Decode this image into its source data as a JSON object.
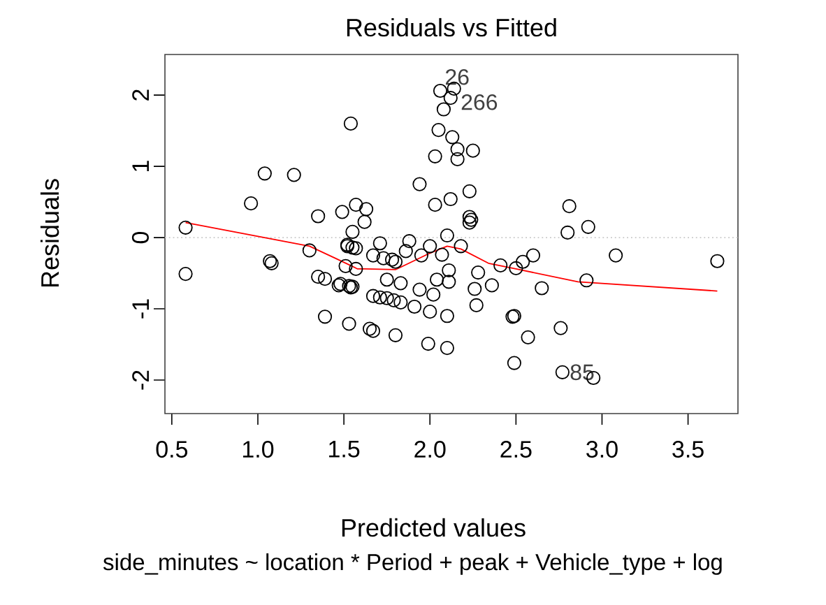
{
  "chart_data": {
    "type": "scatter",
    "title": "Residuals vs Fitted",
    "xlabel": "Predicted values",
    "ylabel": "Residuals",
    "subtitle": "side_minutes ~ location * Period + peak + Vehicle_type + log",
    "xlim": [
      0.46,
      3.79
    ],
    "ylim": [
      -2.47,
      2.57
    ],
    "xticks": [
      0.5,
      {
        "value": 1,
        "label": "1.0"
      },
      1.5,
      {
        "value": 2,
        "label": "2.0"
      },
      2.5,
      {
        "value": 3,
        "label": "3.0"
      },
      3.5
    ],
    "yticks": [
      -2,
      -1,
      0,
      1,
      2
    ],
    "grid": false,
    "ref_lines": [
      {
        "axis": "y",
        "value": 0,
        "color": "#c8c8c8",
        "line_style": "dotted"
      }
    ],
    "annotations": [
      {
        "text": "26",
        "x": 2.06,
        "y": 2.06
      },
      {
        "text": "266",
        "x": 2.12,
        "y": 1.96
      },
      {
        "text": "85",
        "x": 2.77,
        "y": -1.89
      }
    ],
    "series": [
      {
        "marker": "circle",
        "color": "#000000",
        "x": [
          0.58,
          0.58,
          0.96,
          1.04,
          1.21,
          1.07,
          1.08,
          1.3,
          1.35,
          1.35,
          1.39,
          1.47,
          1.39,
          1.49,
          1.54,
          1.53,
          1.53,
          1.54,
          1.51,
          1.55,
          1.57,
          1.52,
          2.06,
          2.14,
          2.12,
          2.08,
          2.05,
          2.13,
          2.16,
          2.25,
          2.03,
          2.16,
          1.94,
          2.03,
          2.12,
          2.23,
          2.23,
          2.24,
          2.23,
          1.63,
          1.62,
          1.52,
          1.55,
          1.57,
          1.71,
          1.67,
          1.73,
          1.78,
          1.8,
          1.57,
          1.48,
          1.55,
          1.75,
          1.83,
          1.88,
          1.86,
          1.95,
          2.0,
          2.1,
          2.07,
          2.11,
          2.04,
          2.11,
          2.18,
          1.94,
          2.02,
          1.67,
          1.71,
          1.75,
          1.79,
          1.83,
          1.91,
          2.0,
          2.1,
          1.65,
          1.67,
          1.8,
          1.99,
          2.1,
          2.26,
          2.27,
          2.28,
          2.36,
          2.41,
          2.48,
          2.49,
          2.81,
          2.92,
          2.8,
          3.08,
          3.67,
          2.6,
          2.54,
          2.5,
          2.91,
          2.65,
          2.49,
          2.57,
          2.76,
          2.77,
          2.95
        ],
        "values": [
          0.14,
          -0.51,
          0.48,
          0.9,
          0.88,
          -0.33,
          -0.36,
          -0.18,
          0.3,
          -0.55,
          -0.58,
          -0.67,
          -1.11,
          0.36,
          1.6,
          -1.21,
          -0.68,
          -0.7,
          -0.4,
          0.08,
          0.46,
          -0.1,
          2.06,
          2.09,
          1.96,
          1.8,
          1.51,
          1.41,
          1.24,
          1.22,
          1.14,
          1.1,
          0.75,
          0.46,
          0.54,
          0.65,
          0.29,
          0.25,
          0.21,
          0.4,
          0.22,
          -0.12,
          -0.14,
          -0.15,
          -0.08,
          -0.25,
          -0.29,
          -0.31,
          -0.34,
          -0.44,
          -0.65,
          -0.69,
          -0.59,
          -0.64,
          -0.05,
          -0.19,
          -0.25,
          -0.12,
          0.03,
          -0.24,
          -0.46,
          -0.59,
          -0.62,
          -0.12,
          -0.73,
          -0.8,
          -0.82,
          -0.84,
          -0.85,
          -0.88,
          -0.91,
          -0.97,
          -1.04,
          -1.1,
          -1.28,
          -1.31,
          -1.37,
          -1.49,
          -1.55,
          -0.72,
          -0.95,
          -0.49,
          -0.67,
          -0.39,
          -1.11,
          -1.76,
          0.44,
          0.15,
          0.07,
          -0.25,
          -0.33,
          -0.25,
          -0.34,
          -0.43,
          -0.6,
          -0.71,
          -1.1,
          -1.4,
          -1.27,
          -1.89,
          -1.97
        ]
      },
      {
        "type": "line",
        "marker": "none",
        "color": "#ff0000",
        "x": [
          0.58,
          1.3,
          1.45,
          1.58,
          1.62,
          1.8,
          1.99,
          2.1,
          2.18,
          2.34,
          2.5,
          2.86,
          3.67
        ],
        "values": [
          0.21,
          -0.12,
          -0.29,
          -0.44,
          -0.44,
          -0.45,
          -0.23,
          -0.12,
          -0.16,
          -0.36,
          -0.44,
          -0.62,
          -0.75
        ]
      }
    ]
  }
}
